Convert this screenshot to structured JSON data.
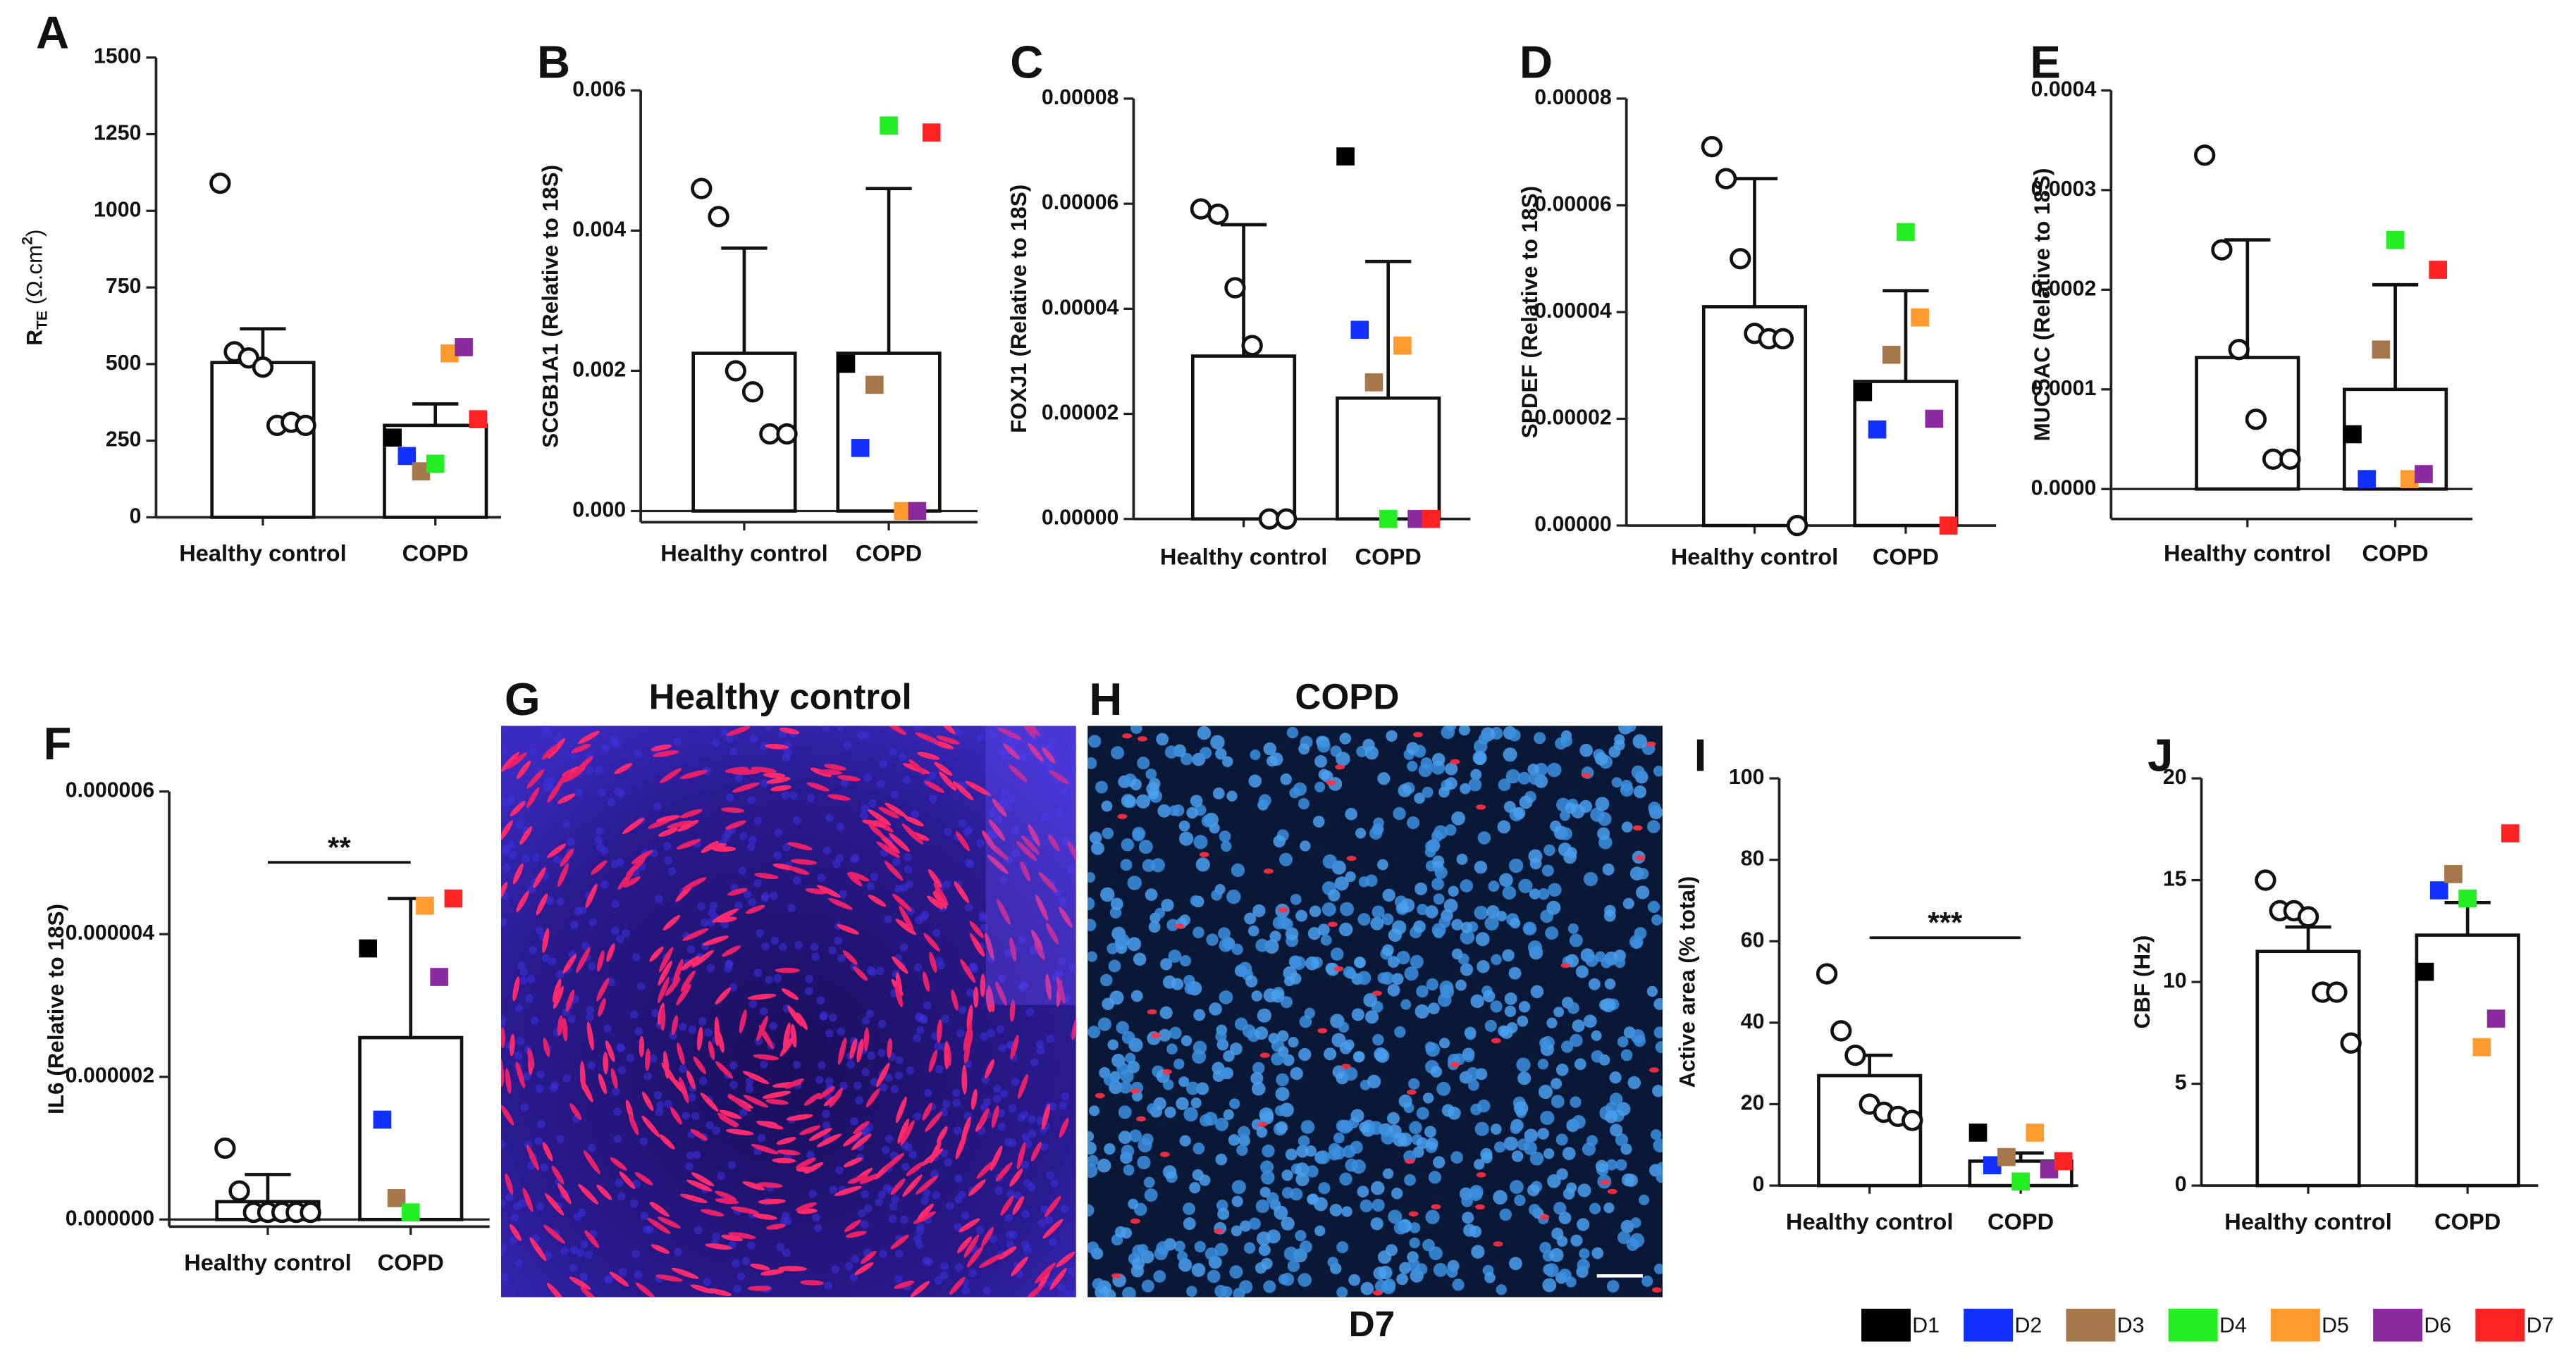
{
  "chart_data": [
    {
      "type": "bar-scatter",
      "label": "A",
      "y_label_parts": [
        "R",
        "TE",
        " (Ω.cm",
        "2",
        ")"
      ],
      "categories": [
        "Healthy control",
        "COPD"
      ],
      "means": [
        505,
        300
      ],
      "errors": [
        110,
        70
      ],
      "control": [
        1090,
        540,
        520,
        490,
        300,
        310,
        300
      ],
      "copd": [
        260,
        200,
        150,
        175,
        535,
        555,
        320
      ],
      "ylim": [
        0,
        1500
      ],
      "yticks": [
        0,
        250,
        500,
        750,
        1000,
        1250,
        1500
      ]
    },
    {
      "type": "bar-scatter",
      "label": "B",
      "y_label": "SCGB1A1 (Relative to 18S)",
      "categories": [
        "Healthy control",
        "COPD"
      ],
      "means": [
        0.00225,
        0.00225
      ],
      "errors": [
        0.0015,
        0.00235
      ],
      "control": [
        0.0046,
        0.0042,
        0.002,
        0.0017,
        0.0011,
        0.0011
      ],
      "copd": [
        0.0021,
        0.0009,
        0.0018,
        0.0055,
        0,
        0,
        0.0054
      ],
      "ylim": [
        -0.00016,
        0.006
      ],
      "yticks": [
        {
          "value": 0,
          "label": "0.000"
        },
        0.002,
        0.004,
        0.006
      ]
    },
    {
      "type": "bar-scatter",
      "label": "C",
      "y_label": "FOXJ1 (Relative to 18S)",
      "categories": [
        "Healthy control",
        "COPD"
      ],
      "means": [
        3.1e-05,
        2.3e-05
      ],
      "errors": [
        2.5e-05,
        2.6e-05
      ],
      "control": [
        5.9e-05,
        5.8e-05,
        4.4e-05,
        3.3e-05,
        0,
        0
      ],
      "copd": [
        6.9e-05,
        3.6e-05,
        2.6e-05,
        0,
        3.3e-05,
        0,
        0
      ],
      "ylim": [
        0,
        8e-05
      ],
      "yticks": [
        {
          "value": 0,
          "label": "0.00000"
        },
        2e-05,
        4e-05,
        6e-05,
        8e-05
      ]
    },
    {
      "type": "bar-scatter",
      "label": "D",
      "y_label": "SPDEF (Relative to 18S)",
      "categories": [
        "Healthy control",
        "COPD"
      ],
      "means": [
        4.1e-05,
        2.7e-05
      ],
      "errors": [
        2.4e-05,
        1.7e-05
      ],
      "control": [
        7.1e-05,
        6.5e-05,
        5e-05,
        3.6e-05,
        3.5e-05,
        3.5e-05,
        0
      ],
      "copd": [
        2.5e-05,
        1.8e-05,
        3.2e-05,
        5.5e-05,
        3.9e-05,
        2e-05,
        0
      ],
      "ylim": [
        0,
        8e-05
      ],
      "yticks": [
        {
          "value": 0,
          "label": "0.00000"
        },
        2e-05,
        4e-05,
        6e-05,
        8e-05
      ]
    },
    {
      "type": "bar-scatter",
      "label": "E",
      "y_label": "MUC5AC (Relative to 18S)",
      "categories": [
        "Healthy control",
        "COPD"
      ],
      "means": [
        0.000132,
        0.0001
      ],
      "errors": [
        0.000118,
        0.000105
      ],
      "control": [
        0.000335,
        0.00024,
        0.00014,
        7e-05,
        3e-05,
        3e-05
      ],
      "copd": [
        5.5e-05,
        1e-05,
        0.00014,
        0.00025,
        1e-05,
        1.5e-05,
        0.00022
      ],
      "ylim": [
        -3e-05,
        0.0004
      ],
      "yticks": [
        {
          "value": 0,
          "label": "0.0000"
        },
        0.0001,
        0.0002,
        0.0003,
        0.0004
      ]
    },
    {
      "type": "bar-scatter",
      "label": "F",
      "y_label": "IL6 (Relative to 18S)",
      "significance": "**",
      "categories": [
        "Healthy control",
        "COPD"
      ],
      "means": [
        2.5e-07,
        2.55e-06
      ],
      "errors": [
        3.8e-07,
        1.95e-06
      ],
      "control": [
        1e-06,
        4e-07,
        1e-07,
        1e-07,
        1e-07,
        1e-07,
        1e-07
      ],
      "copd": [
        3.8e-06,
        1.4e-06,
        3e-07,
        1e-07,
        4.4e-06,
        3.4e-06,
        4.5e-06
      ],
      "ylim": [
        -1e-07,
        6e-06
      ],
      "yticks": [
        {
          "value": 0,
          "label": "0.000000"
        },
        2e-06,
        4e-06,
        6e-06
      ]
    },
    {
      "type": "bar-scatter",
      "label": "I",
      "y_label": "Active area (% total)",
      "significance": "***",
      "categories": [
        "Healthy control",
        "COPD"
      ],
      "means": [
        27,
        6
      ],
      "errors": [
        5,
        2
      ],
      "control": [
        52,
        38,
        32,
        20,
        18,
        17,
        16
      ],
      "copd": [
        13,
        5,
        7,
        1,
        13,
        4,
        6
      ],
      "ylim": [
        0,
        100
      ],
      "yticks": [
        0,
        20,
        40,
        60,
        80,
        100
      ]
    },
    {
      "type": "bar-scatter",
      "label": "J",
      "y_label": "CBF (Hz)",
      "categories": [
        "Healthy control",
        "COPD"
      ],
      "means": [
        11.5,
        12.3
      ],
      "errors": [
        1.2,
        1.6
      ],
      "control": [
        15,
        13.5,
        13.5,
        13.2,
        9.5,
        9.5,
        7
      ],
      "copd": [
        10.5,
        14.5,
        15.3,
        14.1,
        6.8,
        8.2,
        17.3
      ],
      "ylim": [
        0,
        20
      ],
      "yticks": [
        0,
        5,
        10,
        15,
        20
      ]
    }
  ],
  "images": [
    {
      "label": "G",
      "title": "Healthy control"
    },
    {
      "label": "H",
      "title": "COPD"
    }
  ],
  "image_caption": "D7",
  "legend": [
    {
      "name": "D1",
      "color": "#000000"
    },
    {
      "name": "D2",
      "color": "#1030ff"
    },
    {
      "name": "D3",
      "color": "#a5774a"
    },
    {
      "name": "D4",
      "color": "#22ee22"
    },
    {
      "name": "D5",
      "color": "#ff9a2e"
    },
    {
      "name": "D6",
      "color": "#8a2a9e"
    },
    {
      "name": "D7",
      "color": "#ff2222"
    }
  ]
}
